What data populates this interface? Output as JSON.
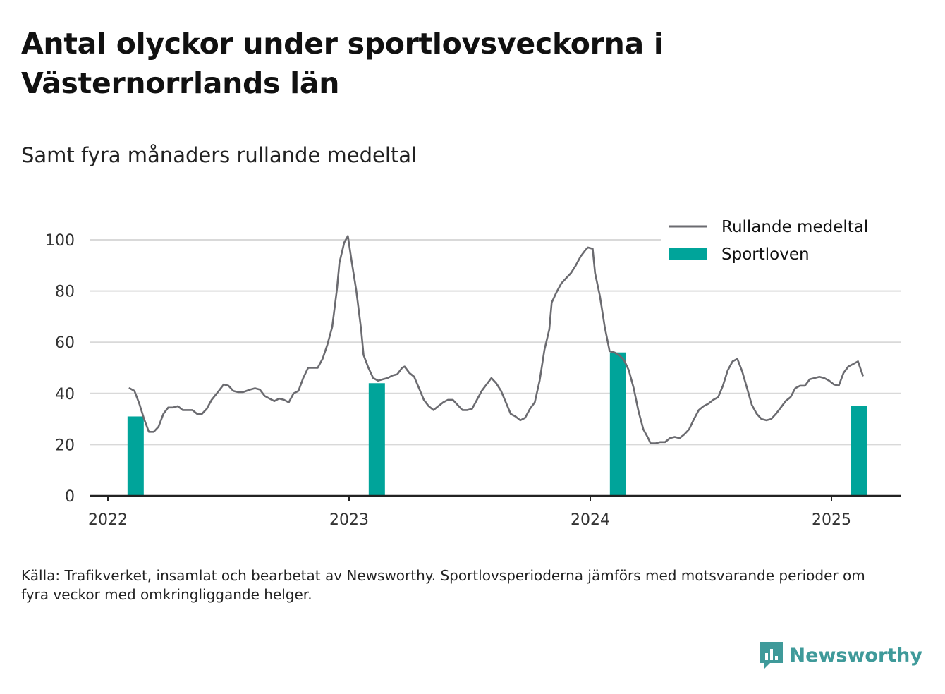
{
  "title": "Antal olyckor under sportlovsveckorna i Västernorrlands län",
  "subtitle": "Samt fyra månaders rullande medeltal",
  "footnote": "Källa: Trafikverket, insamlat och bearbetat av Newsworthy. Sportlovsperioderna jämförs med motsvarande perioder om fyra veckor med omkringliggande helger.",
  "brand": {
    "name": "Newsworthy",
    "icon": "newsworthy-logo-icon"
  },
  "colors": {
    "line": "#6b6b70",
    "bar": "#00a49a",
    "grid": "#d9d9d9",
    "axis": "#222222"
  },
  "chart_data": {
    "type": "line",
    "xlim": [
      2022.0,
      2025.3
    ],
    "ylim": [
      0,
      100
    ],
    "yticks": [
      0,
      20,
      40,
      60,
      80,
      100
    ],
    "xticks": [
      2022,
      2023,
      2024,
      2025
    ],
    "xtick_labels": [
      "2022",
      "2023",
      "2024",
      "2025"
    ],
    "ytick_labels": [
      "0",
      "20",
      "40",
      "60",
      "80",
      "100"
    ],
    "grid": true,
    "legend_position": "top-right",
    "series": [
      {
        "name": "Rullande medeltal",
        "kind": "line",
        "points": [
          [
            2022.09,
            42
          ],
          [
            2022.11,
            41
          ],
          [
            2022.13,
            36
          ],
          [
            2022.15,
            30
          ],
          [
            2022.17,
            25
          ],
          [
            2022.19,
            25
          ],
          [
            2022.21,
            27
          ],
          [
            2022.23,
            32
          ],
          [
            2022.25,
            34.5
          ],
          [
            2022.27,
            34.5
          ],
          [
            2022.29,
            35
          ],
          [
            2022.31,
            33.5
          ],
          [
            2022.35,
            33.5
          ],
          [
            2022.37,
            32
          ],
          [
            2022.39,
            32
          ],
          [
            2022.41,
            34
          ],
          [
            2022.43,
            37.5
          ],
          [
            2022.46,
            41
          ],
          [
            2022.48,
            43.5
          ],
          [
            2022.5,
            43
          ],
          [
            2022.52,
            41
          ],
          [
            2022.54,
            40.5
          ],
          [
            2022.56,
            40.5
          ],
          [
            2022.59,
            41.5
          ],
          [
            2022.61,
            42
          ],
          [
            2022.63,
            41.5
          ],
          [
            2022.65,
            39
          ],
          [
            2022.67,
            38
          ],
          [
            2022.69,
            37
          ],
          [
            2022.71,
            38
          ],
          [
            2022.73,
            37.5
          ],
          [
            2022.75,
            36.5
          ],
          [
            2022.77,
            40
          ],
          [
            2022.79,
            41
          ],
          [
            2022.81,
            46
          ],
          [
            2022.83,
            50
          ],
          [
            2022.85,
            50
          ],
          [
            2022.87,
            50
          ],
          [
            2022.89,
            53.5
          ],
          [
            2022.91,
            59
          ],
          [
            2022.93,
            66
          ],
          [
            2022.95,
            81
          ],
          [
            2022.96,
            91
          ],
          [
            2022.98,
            99
          ],
          [
            2022.995,
            101.5
          ],
          [
            2023.01,
            92
          ],
          [
            2023.03,
            80
          ],
          [
            2023.05,
            65
          ],
          [
            2023.06,
            55
          ],
          [
            2023.08,
            50
          ],
          [
            2023.1,
            46
          ],
          [
            2023.12,
            45
          ],
          [
            2023.14,
            45.5
          ],
          [
            2023.16,
            46
          ],
          [
            2023.18,
            47
          ],
          [
            2023.2,
            47.5
          ],
          [
            2023.22,
            50
          ],
          [
            2023.23,
            50.5
          ],
          [
            2023.25,
            48
          ],
          [
            2023.27,
            46.5
          ],
          [
            2023.29,
            42
          ],
          [
            2023.31,
            37.5
          ],
          [
            2023.33,
            35
          ],
          [
            2023.35,
            33.5
          ],
          [
            2023.37,
            35
          ],
          [
            2023.39,
            36.5
          ],
          [
            2023.41,
            37.5
          ],
          [
            2023.43,
            37.5
          ],
          [
            2023.45,
            35.5
          ],
          [
            2023.47,
            33.5
          ],
          [
            2023.49,
            33.5
          ],
          [
            2023.51,
            34
          ],
          [
            2023.53,
            37.5
          ],
          [
            2023.55,
            41
          ],
          [
            2023.57,
            43.5
          ],
          [
            2023.59,
            46
          ],
          [
            2023.61,
            44
          ],
          [
            2023.63,
            41
          ],
          [
            2023.65,
            36.5
          ],
          [
            2023.67,
            32
          ],
          [
            2023.69,
            31
          ],
          [
            2023.71,
            29.5
          ],
          [
            2023.73,
            30.5
          ],
          [
            2023.75,
            34
          ],
          [
            2023.77,
            36.5
          ],
          [
            2023.79,
            45
          ],
          [
            2023.81,
            57
          ],
          [
            2023.83,
            65
          ],
          [
            2023.84,
            75.5
          ],
          [
            2023.86,
            79.5
          ],
          [
            2023.88,
            83
          ],
          [
            2023.9,
            85
          ],
          [
            2023.92,
            87
          ],
          [
            2023.94,
            90
          ],
          [
            2023.96,
            93.5
          ],
          [
            2023.98,
            96
          ],
          [
            2023.99,
            97
          ],
          [
            2024.01,
            96.5
          ],
          [
            2024.02,
            87
          ],
          [
            2024.04,
            78
          ],
          [
            2024.06,
            66
          ],
          [
            2024.08,
            56.5
          ],
          [
            2024.1,
            56
          ],
          [
            2024.12,
            55
          ],
          [
            2024.14,
            53
          ],
          [
            2024.16,
            49
          ],
          [
            2024.18,
            42
          ],
          [
            2024.2,
            33
          ],
          [
            2024.22,
            26
          ],
          [
            2024.24,
            22.5
          ],
          [
            2024.25,
            20.5
          ],
          [
            2024.27,
            20.5
          ],
          [
            2024.29,
            21
          ],
          [
            2024.31,
            21
          ],
          [
            2024.33,
            22.5
          ],
          [
            2024.35,
            23
          ],
          [
            2024.37,
            22.5
          ],
          [
            2024.39,
            24
          ],
          [
            2024.41,
            26
          ],
          [
            2024.43,
            30
          ],
          [
            2024.45,
            33.5
          ],
          [
            2024.47,
            35
          ],
          [
            2024.49,
            36
          ],
          [
            2024.51,
            37.5
          ],
          [
            2024.53,
            38.5
          ],
          [
            2024.55,
            43
          ],
          [
            2024.57,
            49
          ],
          [
            2024.59,
            52.5
          ],
          [
            2024.61,
            53.5
          ],
          [
            2024.63,
            48.5
          ],
          [
            2024.65,
            42
          ],
          [
            2024.67,
            35.5
          ],
          [
            2024.69,
            32
          ],
          [
            2024.71,
            30
          ],
          [
            2024.73,
            29.5
          ],
          [
            2024.75,
            30
          ],
          [
            2024.77,
            32
          ],
          [
            2024.79,
            34.5
          ],
          [
            2024.81,
            37
          ],
          [
            2024.83,
            38.5
          ],
          [
            2024.85,
            42
          ],
          [
            2024.87,
            43
          ],
          [
            2024.89,
            43
          ],
          [
            2024.91,
            45.5
          ],
          [
            2024.93,
            46
          ],
          [
            2024.95,
            46.5
          ],
          [
            2024.97,
            46
          ],
          [
            2024.99,
            45
          ],
          [
            2025.01,
            43.5
          ],
          [
            2025.03,
            43
          ],
          [
            2025.05,
            48
          ],
          [
            2025.07,
            50.5
          ],
          [
            2025.09,
            51.5
          ],
          [
            2025.11,
            52.5
          ],
          [
            2025.13,
            47
          ]
        ]
      },
      {
        "name": "Sportloven",
        "kind": "bar",
        "points": [
          [
            2022.115,
            31
          ],
          [
            2023.115,
            44
          ],
          [
            2024.115,
            56
          ],
          [
            2025.115,
            35
          ]
        ]
      }
    ]
  }
}
